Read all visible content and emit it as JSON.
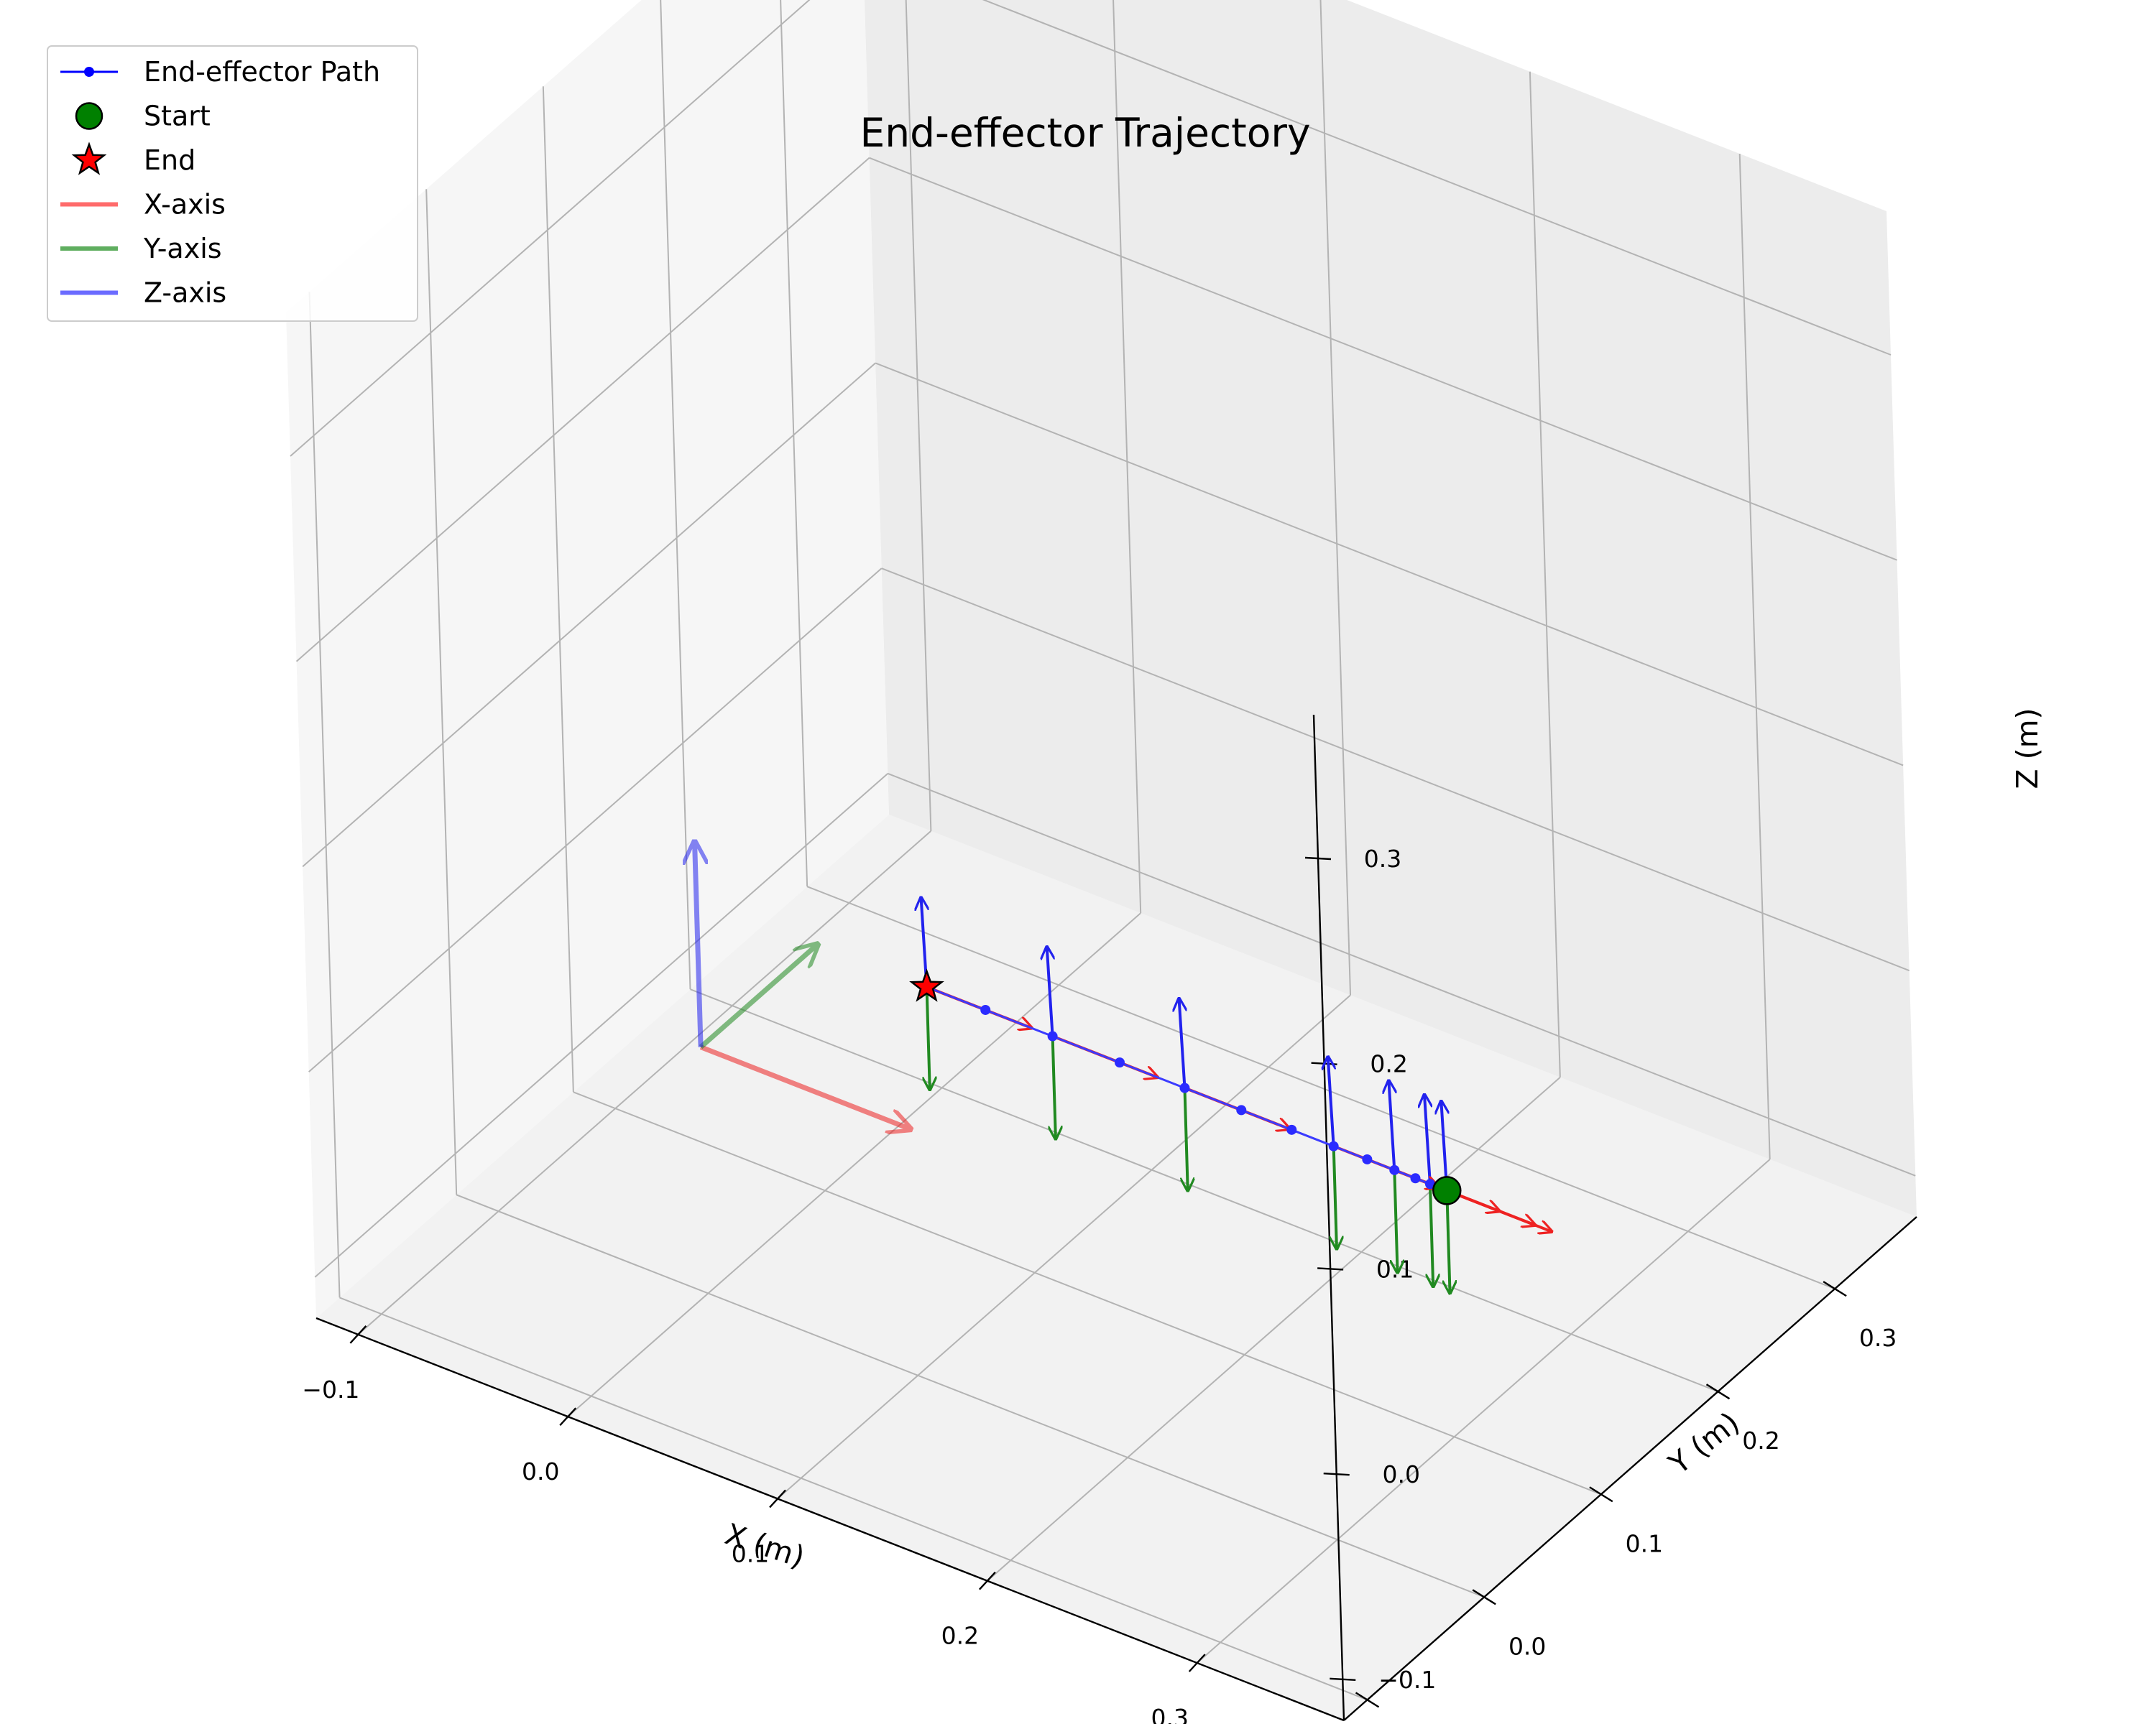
{
  "chart_data": {
    "type": "line3d",
    "title": "End-effector Trajectory",
    "xlabel": "X (m)",
    "ylabel": "Y (m)",
    "zlabel": "Z (m)",
    "xlim": [
      -0.12,
      0.37
    ],
    "ylim": [
      -0.12,
      0.37
    ],
    "zlim": [
      -0.12,
      0.37
    ],
    "xticks": [
      -0.1,
      0.0,
      0.1,
      0.2,
      0.3
    ],
    "yticks": [
      -0.1,
      0.0,
      0.1,
      0.2,
      0.3
    ],
    "zticks": [
      -0.1,
      0.0,
      0.1,
      0.2,
      0.3
    ],
    "xtick_labels": [
      "−0.1",
      "0.0",
      "0.1",
      "0.2",
      "0.3"
    ],
    "ytick_labels": [
      "−0.1",
      "0.0",
      "0.1",
      "0.2",
      "0.3"
    ],
    "ztick_labels": [
      "−0.1",
      "0.0",
      "0.1",
      "0.2",
      "0.3"
    ],
    "grid": true,
    "legend_position": "top-left",
    "legend": [
      {
        "label": "End-effector Path",
        "kind": "line-marker",
        "color": "#0000ff"
      },
      {
        "label": "Start",
        "kind": "circle",
        "color": "#008000"
      },
      {
        "label": "End",
        "kind": "star",
        "color": "#ff0000"
      },
      {
        "label": "X-axis",
        "kind": "line",
        "color": "#ff6b6b"
      },
      {
        "label": "Y-axis",
        "kind": "line",
        "color": "#5fae5f"
      },
      {
        "label": "Z-axis",
        "kind": "line",
        "color": "#6b6bff"
      }
    ],
    "base_frame": {
      "origin": [
        0.0,
        0.0,
        0.0
      ],
      "length": 0.1
    },
    "path": {
      "x": [
        0.3,
        0.297,
        0.292,
        0.285,
        0.275,
        0.262,
        0.246,
        0.226,
        0.202,
        0.175,
        0.144,
        0.112,
        0.08,
        0.052
      ],
      "y": [
        0.1,
        0.1,
        0.1,
        0.1,
        0.1,
        0.1,
        0.1,
        0.1,
        0.1,
        0.1,
        0.1,
        0.1,
        0.1,
        0.1
      ],
      "z": [
        0.0,
        0.0,
        0.0,
        0.0,
        0.0,
        0.0,
        0.0,
        0.0,
        0.0,
        0.0,
        0.0,
        0.0,
        0.0,
        0.0
      ]
    },
    "frame_indices": [
      0,
      2,
      4,
      6,
      9,
      11,
      13
    ],
    "frame_length": 0.05,
    "start": [
      0.3,
      0.1,
      0.0
    ],
    "end": [
      0.052,
      0.1,
      0.0
    ]
  }
}
